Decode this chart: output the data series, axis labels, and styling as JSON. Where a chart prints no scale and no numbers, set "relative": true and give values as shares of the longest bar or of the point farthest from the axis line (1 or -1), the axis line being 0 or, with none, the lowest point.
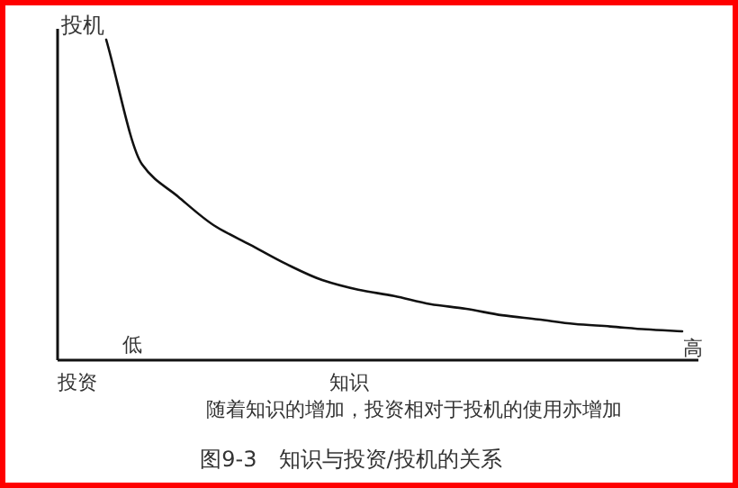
{
  "chart_data": {
    "type": "line",
    "relative": true,
    "title": "图9-3　知识与投资/投机的关系",
    "xlabel": "知识",
    "ylabel": "投机",
    "annotations": [
      "投资",
      "低",
      "高",
      "随着知识的增加，投资相对于投机的使用亦增加"
    ],
    "categories": [
      null,
      null,
      null,
      null,
      null,
      null,
      null,
      null,
      null,
      null,
      null,
      null,
      null,
      null,
      null,
      null,
      null
    ],
    "series": [
      {
        "color": "#111111",
        "values": [
          1,
          0.61,
          0.51,
          0.42,
          0.36,
          0.3,
          0.25,
          0.22,
          0.2,
          0.175,
          0.16,
          0.14,
          0.127,
          0.113,
          0.105,
          0.096,
          0.09
        ]
      }
    ],
    "marker": "none",
    "line_style": "solid"
  }
}
